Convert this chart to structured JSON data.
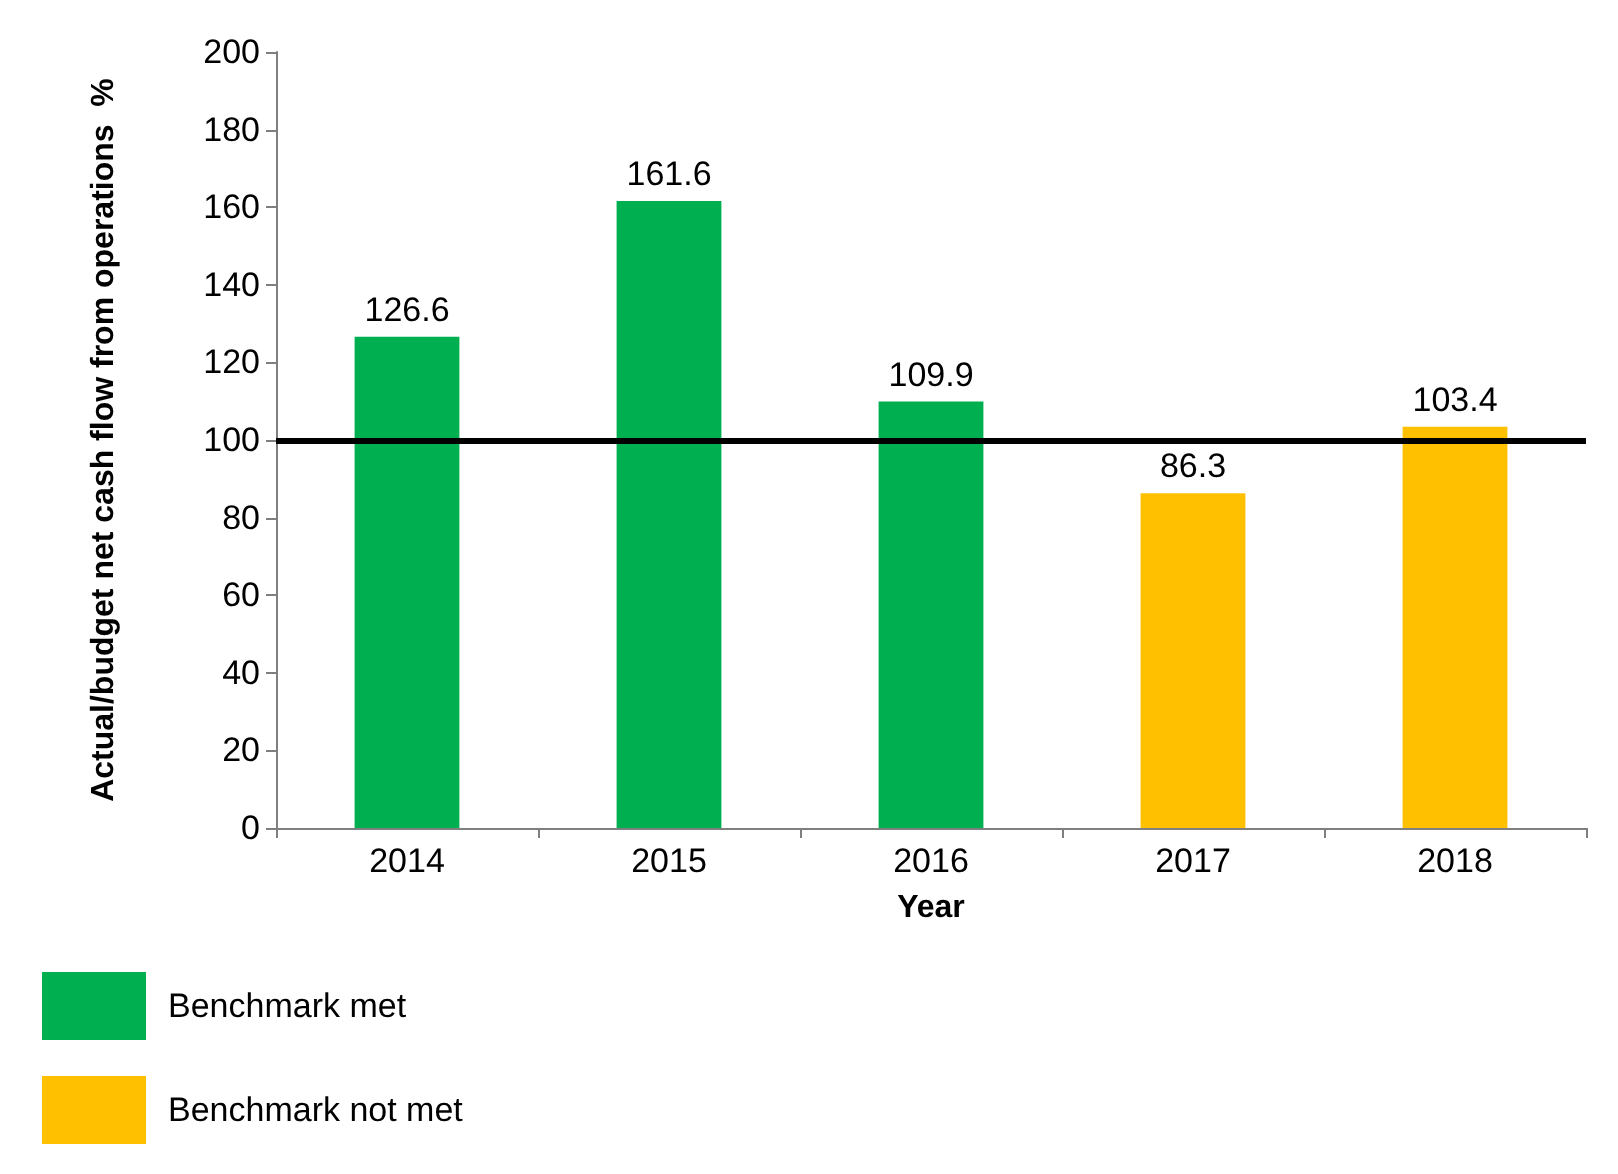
{
  "chart_data": {
    "type": "bar",
    "xlabel": "Year",
    "ylabel": "Actual/budget net cash flow from operations  %",
    "categories": [
      "2014",
      "2015",
      "2016",
      "2017",
      "2018"
    ],
    "series": [
      {
        "name": "Benchmark met",
        "color": "#00b050",
        "values": [
          126.6,
          161.6,
          109.9,
          null,
          null
        ]
      },
      {
        "name": "Benchmark not met",
        "color": "#ffc000",
        "values": [
          null,
          null,
          null,
          86.3,
          103.4
        ]
      }
    ],
    "stacked": true,
    "ylim": [
      0,
      200
    ],
    "yticks": [
      0,
      20,
      40,
      60,
      80,
      100,
      120,
      140,
      160,
      180,
      200
    ],
    "data_labels": true,
    "grid": false,
    "legend": "bottom left",
    "ref_lines": [
      {
        "axis": "y",
        "value": 100,
        "color": "#000000",
        "line_style": "solid"
      }
    ]
  }
}
